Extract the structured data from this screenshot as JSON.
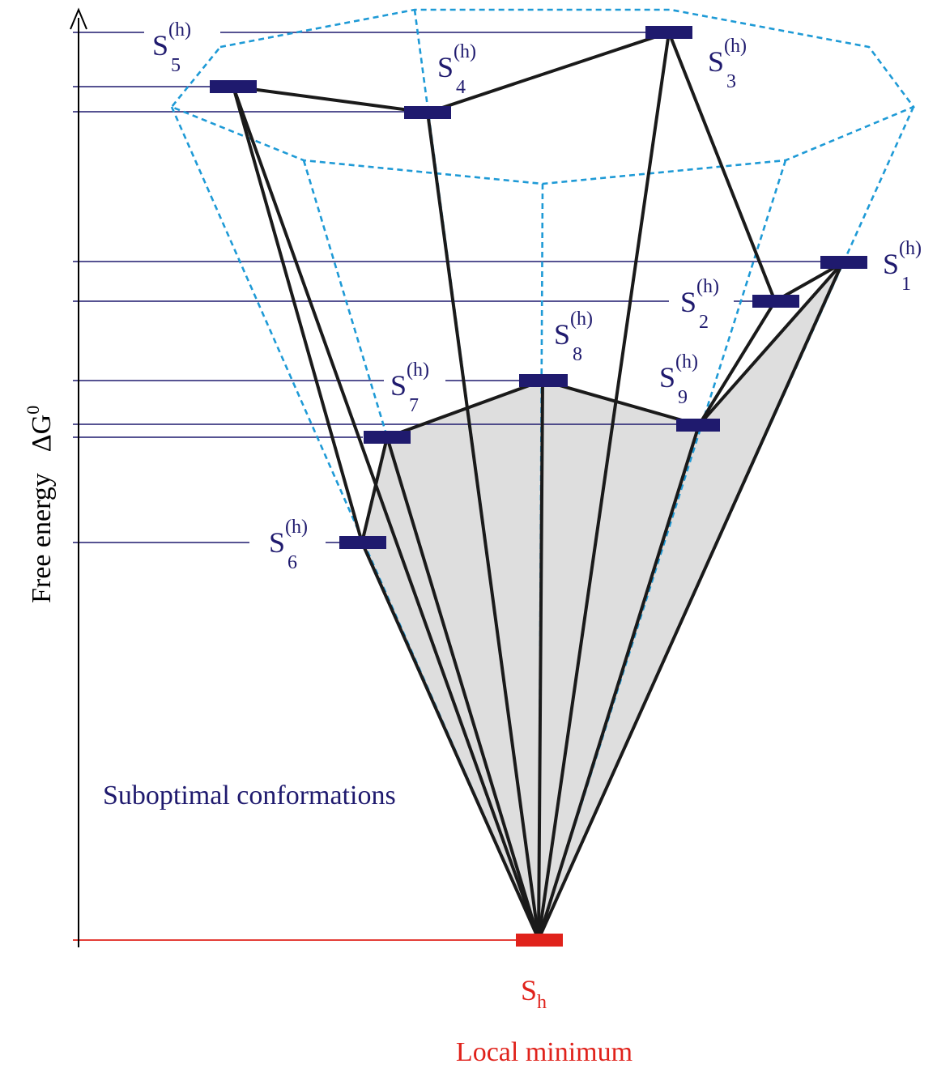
{
  "axis": {
    "label": "Free energy",
    "symbol": "ΔG",
    "symbol_sup": "0"
  },
  "states": [
    {
      "id": "s1",
      "base": "S",
      "sub": "1",
      "sup": "(h)"
    },
    {
      "id": "s2",
      "base": "S",
      "sub": "2",
      "sup": "(h)"
    },
    {
      "id": "s3",
      "base": "S",
      "sub": "3",
      "sup": "(h)"
    },
    {
      "id": "s4",
      "base": "S",
      "sub": "4",
      "sup": "(h)"
    },
    {
      "id": "s5",
      "base": "S",
      "sub": "5",
      "sup": "(h)"
    },
    {
      "id": "s6",
      "base": "S",
      "sub": "6",
      "sup": "(h)"
    },
    {
      "id": "s7",
      "base": "S",
      "sub": "7",
      "sup": "(h)"
    },
    {
      "id": "s8",
      "base": "S",
      "sub": "8",
      "sup": "(h)"
    },
    {
      "id": "s9",
      "base": "S",
      "sub": "9",
      "sup": "(h)"
    }
  ],
  "minimum": {
    "base": "S",
    "sub": "h",
    "caption": "Local minimum"
  },
  "suboptimal_label": "Suboptimal conformations",
  "colors": {
    "state": "#1f1a6e",
    "minimum": "#e0221b",
    "dashed": "#1e9ad6",
    "edge": "#1a1a1a",
    "fill": "#dedede",
    "axis": "#000000"
  }
}
